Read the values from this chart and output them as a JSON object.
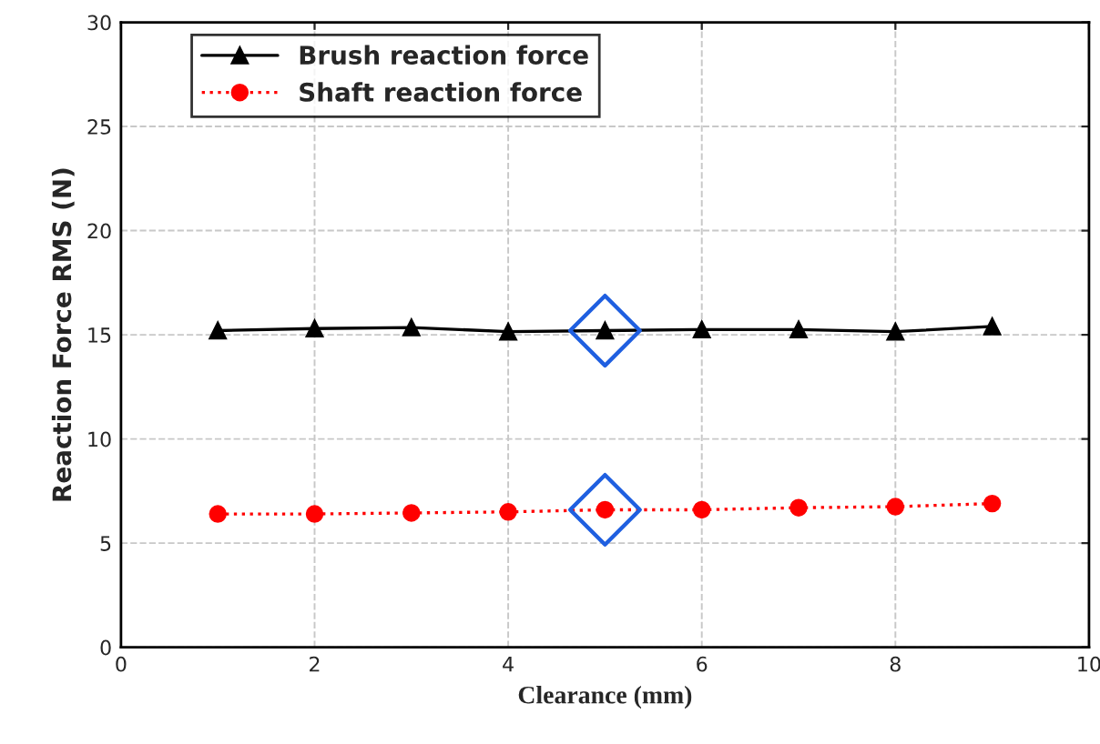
{
  "chart_data": {
    "type": "line",
    "xlabel": "Clearance (mm)",
    "ylabel": "Reaction Force RMS (N)",
    "x": [
      1,
      2,
      3,
      4,
      5,
      6,
      7,
      8,
      9
    ],
    "series": [
      {
        "name": "Brush reaction force",
        "color": "#000000",
        "marker": "triangle",
        "line_style": "solid",
        "values": [
          15.2,
          15.3,
          15.35,
          15.15,
          15.2,
          15.25,
          15.25,
          15.15,
          15.4
        ]
      },
      {
        "name": "Shaft reaction force",
        "color": "#ff0000",
        "marker": "circle",
        "line_style": "dotted",
        "values": [
          6.4,
          6.4,
          6.45,
          6.5,
          6.6,
          6.6,
          6.7,
          6.75,
          6.9
        ]
      },
      {
        "type": "scatter",
        "color": "#1f5fe0",
        "marker": "diamond",
        "x": [
          5,
          5
        ],
        "values": [
          15.2,
          6.6
        ]
      }
    ],
    "xlim": [
      0,
      10
    ],
    "xticks": [
      0,
      2,
      4,
      6,
      8,
      10
    ],
    "ylim": [
      0,
      30
    ],
    "yticks": [
      0,
      5,
      10,
      15,
      20,
      25,
      30
    ],
    "grid": true,
    "legend": "top left"
  }
}
